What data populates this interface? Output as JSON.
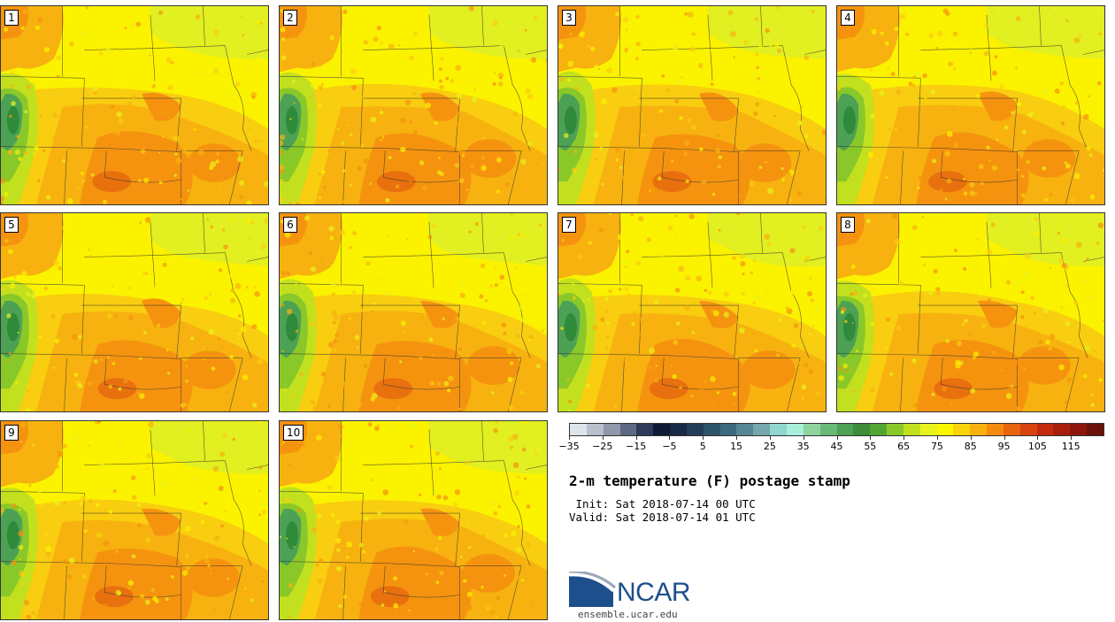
{
  "panels": [
    {
      "label": "1"
    },
    {
      "label": "2"
    },
    {
      "label": "3"
    },
    {
      "label": "4"
    },
    {
      "label": "5"
    },
    {
      "label": "6"
    },
    {
      "label": "7"
    },
    {
      "label": "8"
    },
    {
      "label": "9"
    },
    {
      "label": "10"
    }
  ],
  "colorbar": {
    "colors": [
      "#dfe3ea",
      "#b9bfcb",
      "#8f98aa",
      "#5d6883",
      "#2f3a5a",
      "#0e1a36",
      "#172a45",
      "#223e57",
      "#2d5369",
      "#3c697c",
      "#568695",
      "#74a8ad",
      "#8fd6cc",
      "#a8f0dc",
      "#8fd39e",
      "#68bb76",
      "#4ca155",
      "#3d8d3a",
      "#53a532",
      "#8ac82a",
      "#c3e01e",
      "#e9f21a",
      "#fbf700",
      "#f9d40c",
      "#f7b10f",
      "#f58a0f",
      "#e9640e",
      "#d9430d",
      "#c22a0d",
      "#a81d0c",
      "#8c160c",
      "#6a120b"
    ],
    "min": -35,
    "max": 125,
    "tick_values": [
      -35,
      -25,
      -15,
      -5,
      5,
      15,
      25,
      35,
      45,
      55,
      65,
      75,
      85,
      95,
      105,
      115
    ],
    "tick_labels": [
      "−35",
      "−25",
      "−15",
      "−5",
      "5",
      "15",
      "25",
      "35",
      "45",
      "55",
      "65",
      "75",
      "85",
      "95",
      "105",
      "115"
    ]
  },
  "title": "2-m temperature (F) postage stamp",
  "init_line": " Init: Sat 2018-07-14 00 UTC",
  "valid_line": "Valid: Sat 2018-07-14 01 UTC",
  "logo": {
    "text": "NCAR",
    "url": "ensemble.ucar.edu",
    "blue": "#1d4f8c",
    "grey": "#9aa7b8"
  }
}
